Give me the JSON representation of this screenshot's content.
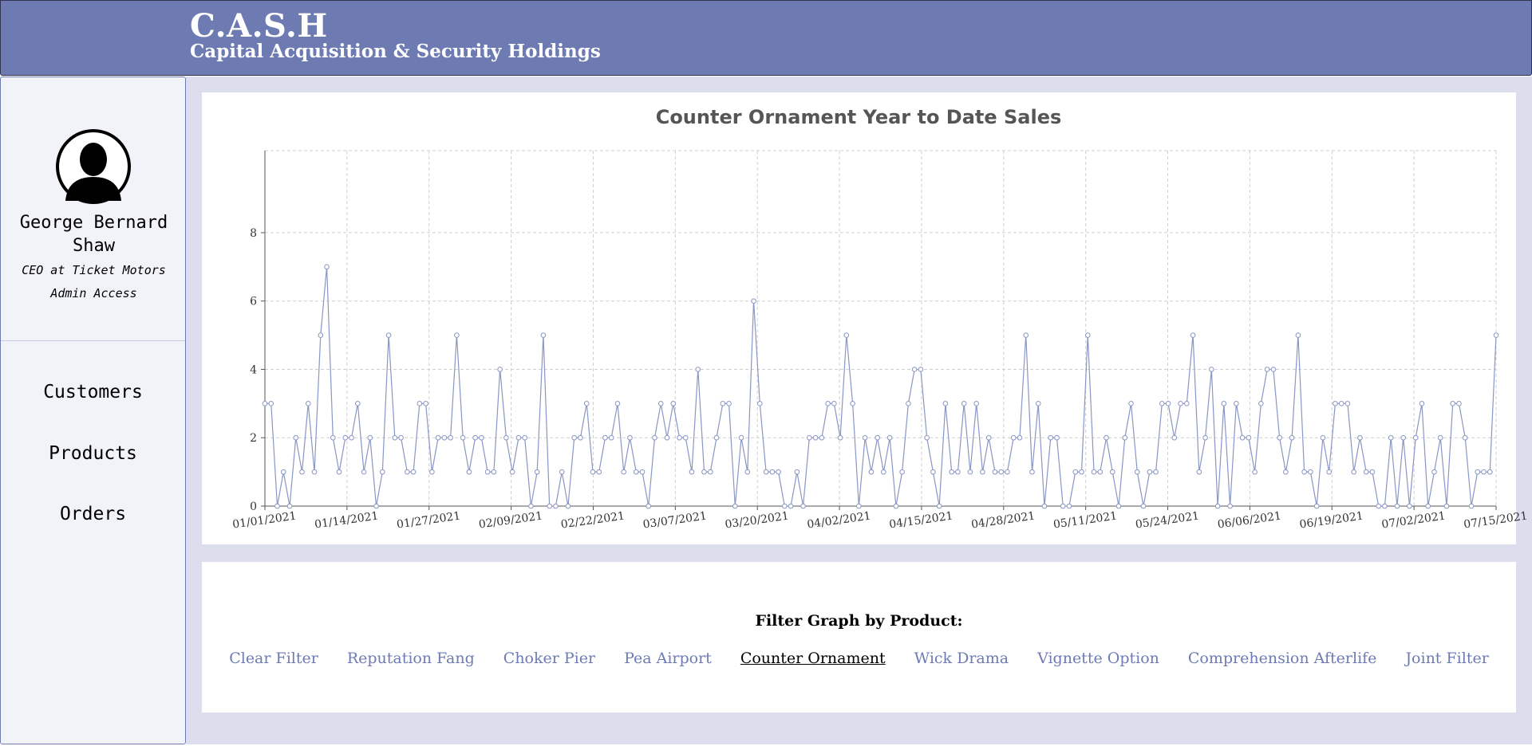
{
  "header": {
    "title": "C.A.S.H",
    "subtitle": "Capital Acquisition & Security Holdings"
  },
  "profile": {
    "avatar_icon": "user-silhouette-icon",
    "name": "George Bernard Shaw",
    "role": "CEO at Ticket Motors",
    "access": "Admin Access"
  },
  "nav": {
    "items": [
      {
        "label": "Customers"
      },
      {
        "label": "Products"
      },
      {
        "label": "Orders"
      }
    ]
  },
  "filter": {
    "title": "Filter Graph by Product:",
    "links": [
      {
        "label": "Clear Filter",
        "active": false
      },
      {
        "label": "Reputation Fang",
        "active": false
      },
      {
        "label": "Choker Pier",
        "active": false
      },
      {
        "label": "Pea Airport",
        "active": false
      },
      {
        "label": "Counter Ornament",
        "active": true
      },
      {
        "label": "Wick Drama",
        "active": false
      },
      {
        "label": "Vignette Option",
        "active": false
      },
      {
        "label": "Comprehension Afterlife",
        "active": false
      },
      {
        "label": "Joint Filter",
        "active": false
      }
    ]
  },
  "colors": {
    "header_bg": "#6d7bb2",
    "accent": "#6d7bb2",
    "main_bg": "#dcdeed",
    "line": "#8a96c4"
  },
  "chart_data": {
    "type": "line",
    "title": "Counter Ornament Year to Date Sales",
    "xlabel": "",
    "ylabel": "",
    "x_start": "01/01/2021",
    "x_end": "07/15/2021",
    "x_tick_labels": [
      "01/01/2021",
      "01/14/2021",
      "01/27/2021",
      "02/09/2021",
      "02/22/2021",
      "03/07/2021",
      "03/20/2021",
      "04/02/2021",
      "04/15/2021",
      "04/28/2021",
      "05/11/2021",
      "05/24/2021",
      "06/06/2021",
      "06/19/2021",
      "07/02/2021",
      "07/15/2021"
    ],
    "y_ticks": [
      0,
      2,
      4,
      6,
      8
    ],
    "ylim": [
      0,
      10.4
    ],
    "grid": true,
    "legend": "none",
    "series": [
      {
        "values": [
          3,
          3,
          0,
          1,
          0,
          2,
          1,
          3,
          1,
          5,
          7,
          2,
          1,
          2,
          2,
          3,
          1,
          2,
          0,
          1,
          5,
          2,
          2,
          1,
          1,
          3,
          3,
          1,
          2,
          2,
          2,
          5,
          2,
          1,
          2,
          2,
          1,
          1,
          4,
          2,
          1,
          2,
          2,
          0,
          1,
          5,
          0,
          0,
          1,
          0,
          2,
          2,
          3,
          1,
          1,
          2,
          2,
          3,
          1,
          2,
          1,
          1,
          0,
          2,
          3,
          2,
          3,
          2,
          2,
          1,
          4,
          1,
          1,
          2,
          3,
          3,
          0,
          2,
          1,
          6,
          3,
          1,
          1,
          1,
          0,
          0,
          1,
          0,
          2,
          2,
          2,
          3,
          3,
          2,
          5,
          3,
          0,
          2,
          1,
          2,
          1,
          2,
          0,
          1,
          3,
          4,
          4,
          2,
          1,
          0,
          3,
          1,
          1,
          3,
          1,
          3,
          1,
          2,
          1,
          1,
          1,
          2,
          2,
          5,
          1,
          3,
          0,
          2,
          2,
          0,
          0,
          1,
          1,
          5,
          1,
          1,
          2,
          1,
          0,
          2,
          3,
          1,
          0,
          1,
          1,
          3,
          3,
          2,
          3,
          3,
          5,
          1,
          2,
          4,
          0,
          3,
          0,
          3,
          2,
          2,
          1,
          3,
          4,
          4,
          2,
          1,
          2,
          5,
          1,
          1,
          0,
          2,
          1,
          3,
          3,
          3,
          1,
          2,
          1,
          1,
          0,
          0,
          2,
          0,
          2,
          0,
          2,
          3,
          0,
          1,
          2,
          0,
          3,
          3,
          2,
          0,
          1,
          1,
          1,
          5
        ]
      }
    ]
  }
}
